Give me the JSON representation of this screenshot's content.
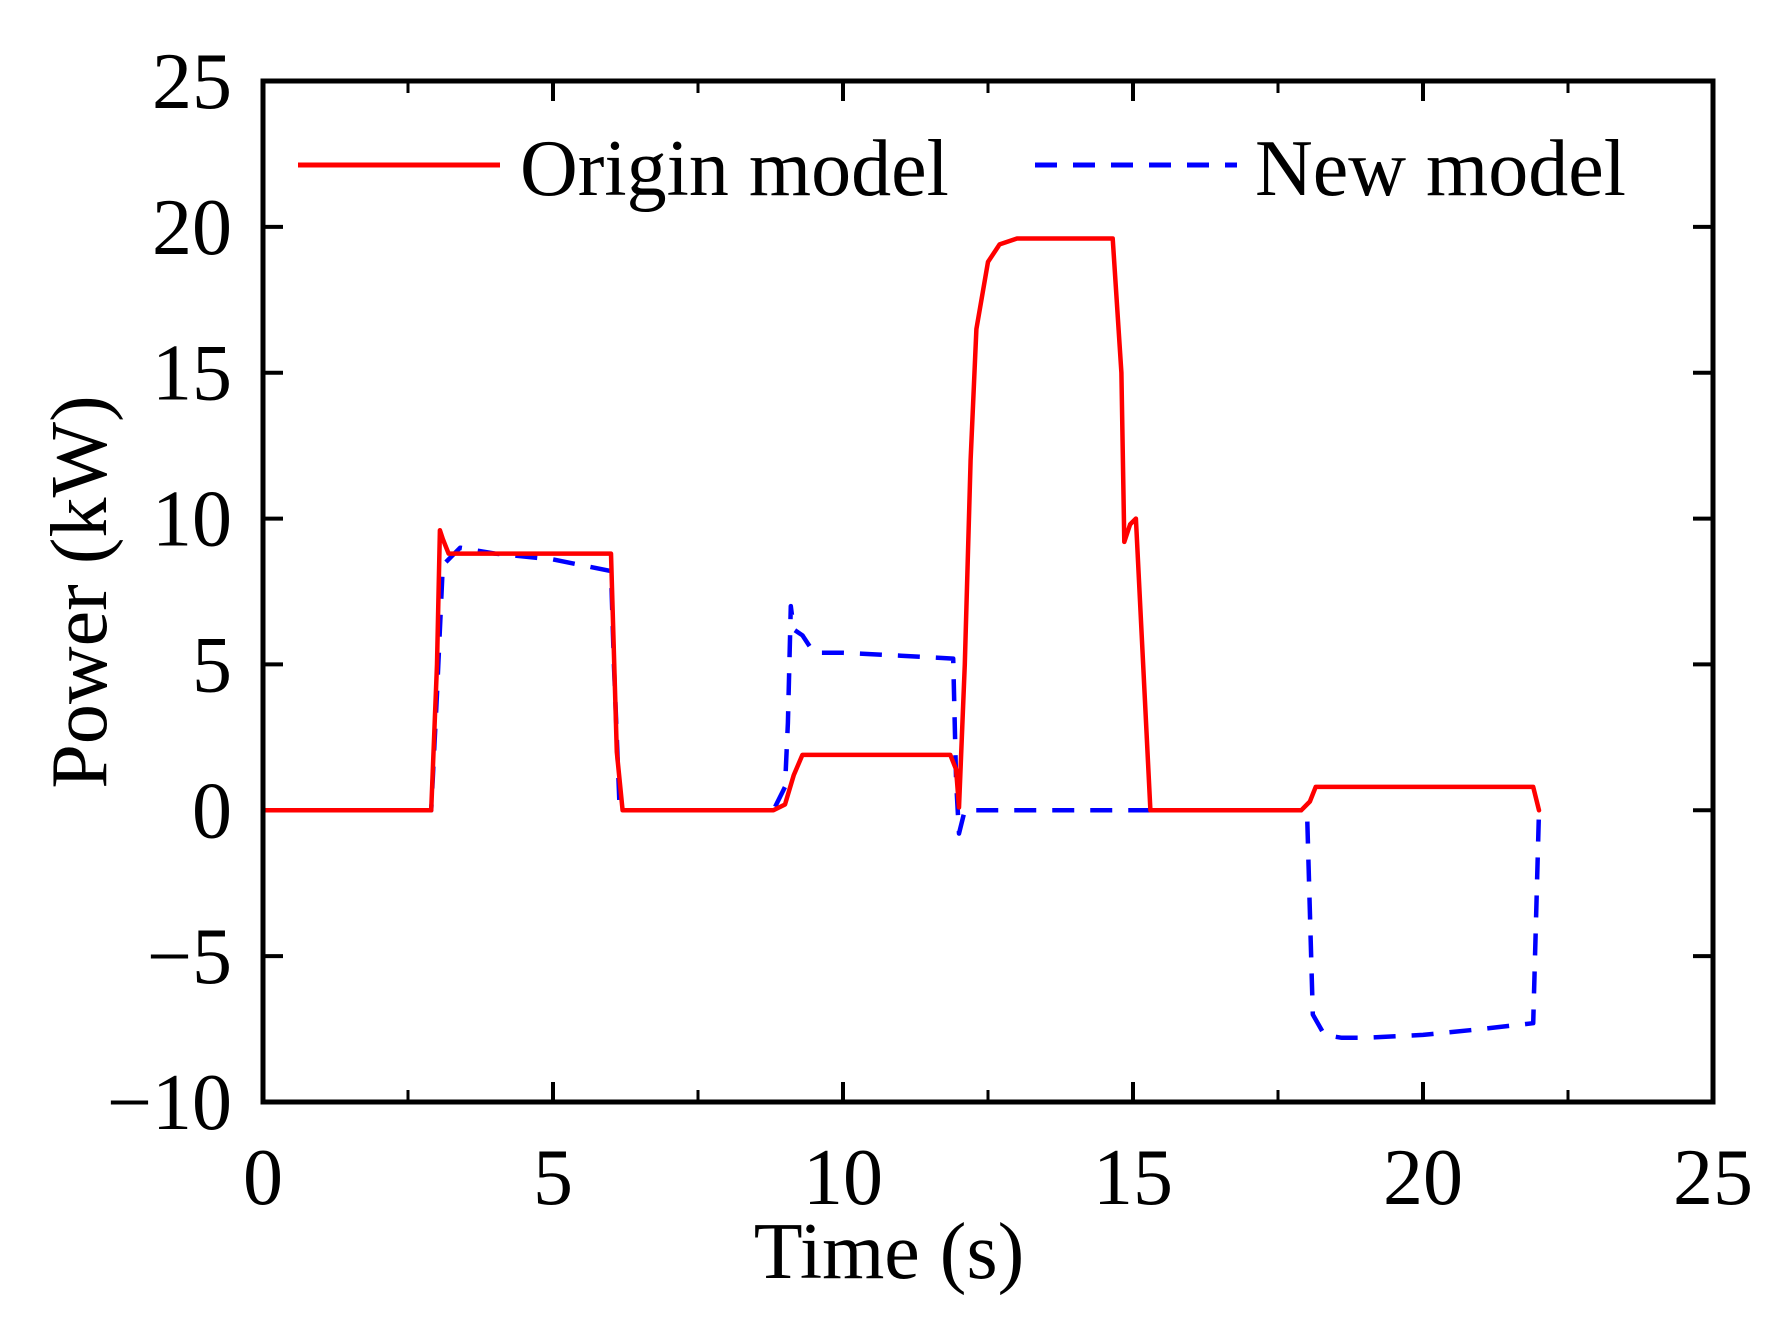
{
  "chart_data": {
    "type": "line",
    "title": "",
    "xlabel": "Time (s)",
    "ylabel": "Power (kW)",
    "xlim": [
      0,
      25
    ],
    "ylim": [
      -10,
      25
    ],
    "x_ticks": [
      0,
      5,
      10,
      15,
      20,
      25
    ],
    "y_ticks": [
      -10,
      -5,
      0,
      5,
      10,
      15,
      20,
      25
    ],
    "x_tick_labels": [
      "0",
      "5",
      "10",
      "15",
      "20",
      "25"
    ],
    "y_tick_labels": [
      "−10",
      "−5",
      "0",
      "5",
      "10",
      "15",
      "20",
      "25"
    ],
    "grid": false,
    "legend_position": "top",
    "series": [
      {
        "name": "Origin model",
        "color": "#ff0000",
        "style": "solid",
        "x": [
          0,
          2.9,
          3.0,
          3.05,
          3.1,
          3.2,
          4.0,
          5.0,
          6.0,
          6.1,
          6.2,
          8.8,
          9.0,
          9.15,
          9.3,
          10.0,
          11.0,
          11.85,
          11.95,
          12.0,
          12.1,
          12.2,
          12.3,
          12.5,
          12.7,
          13.0,
          14.0,
          14.65,
          14.8,
          14.85,
          14.95,
          15.05,
          15.2,
          15.3,
          17.0,
          17.9,
          18.05,
          18.15,
          18.3,
          19.0,
          20.0,
          21.0,
          21.9,
          22.0
        ],
        "y": [
          0,
          0,
          5.0,
          9.6,
          9.3,
          8.8,
          8.8,
          8.8,
          8.8,
          2.0,
          0,
          0,
          0.2,
          1.2,
          1.9,
          1.9,
          1.9,
          1.9,
          1.4,
          0.1,
          5.0,
          12.0,
          16.5,
          18.8,
          19.4,
          19.6,
          19.6,
          19.6,
          15.0,
          9.2,
          9.8,
          10.0,
          4.0,
          0,
          0,
          0,
          0.3,
          0.8,
          0.8,
          0.8,
          0.8,
          0.8,
          0.8,
          0
        ]
      },
      {
        "name": "New model",
        "color": "#0000ff",
        "style": "dashed",
        "x": [
          0,
          2.9,
          3.0,
          3.1,
          3.4,
          4.0,
          5.0,
          6.0,
          6.05,
          6.15,
          8.8,
          9.0,
          9.05,
          9.1,
          9.15,
          9.3,
          9.5,
          10.0,
          11.0,
          11.9,
          11.95,
          12.0,
          12.1,
          14.0,
          17.0,
          18.0,
          18.1,
          18.3,
          18.6,
          19.0,
          20.0,
          21.0,
          21.9,
          22.0
        ],
        "y": [
          0,
          0,
          4.0,
          8.4,
          9.0,
          8.8,
          8.6,
          8.2,
          5.0,
          0,
          0,
          0.8,
          3.0,
          7.0,
          6.2,
          6.0,
          5.4,
          5.4,
          5.3,
          5.2,
          1.0,
          -0.8,
          0,
          0,
          0,
          0,
          -7.0,
          -7.7,
          -7.8,
          -7.8,
          -7.7,
          -7.5,
          -7.3,
          0
        ]
      }
    ]
  }
}
